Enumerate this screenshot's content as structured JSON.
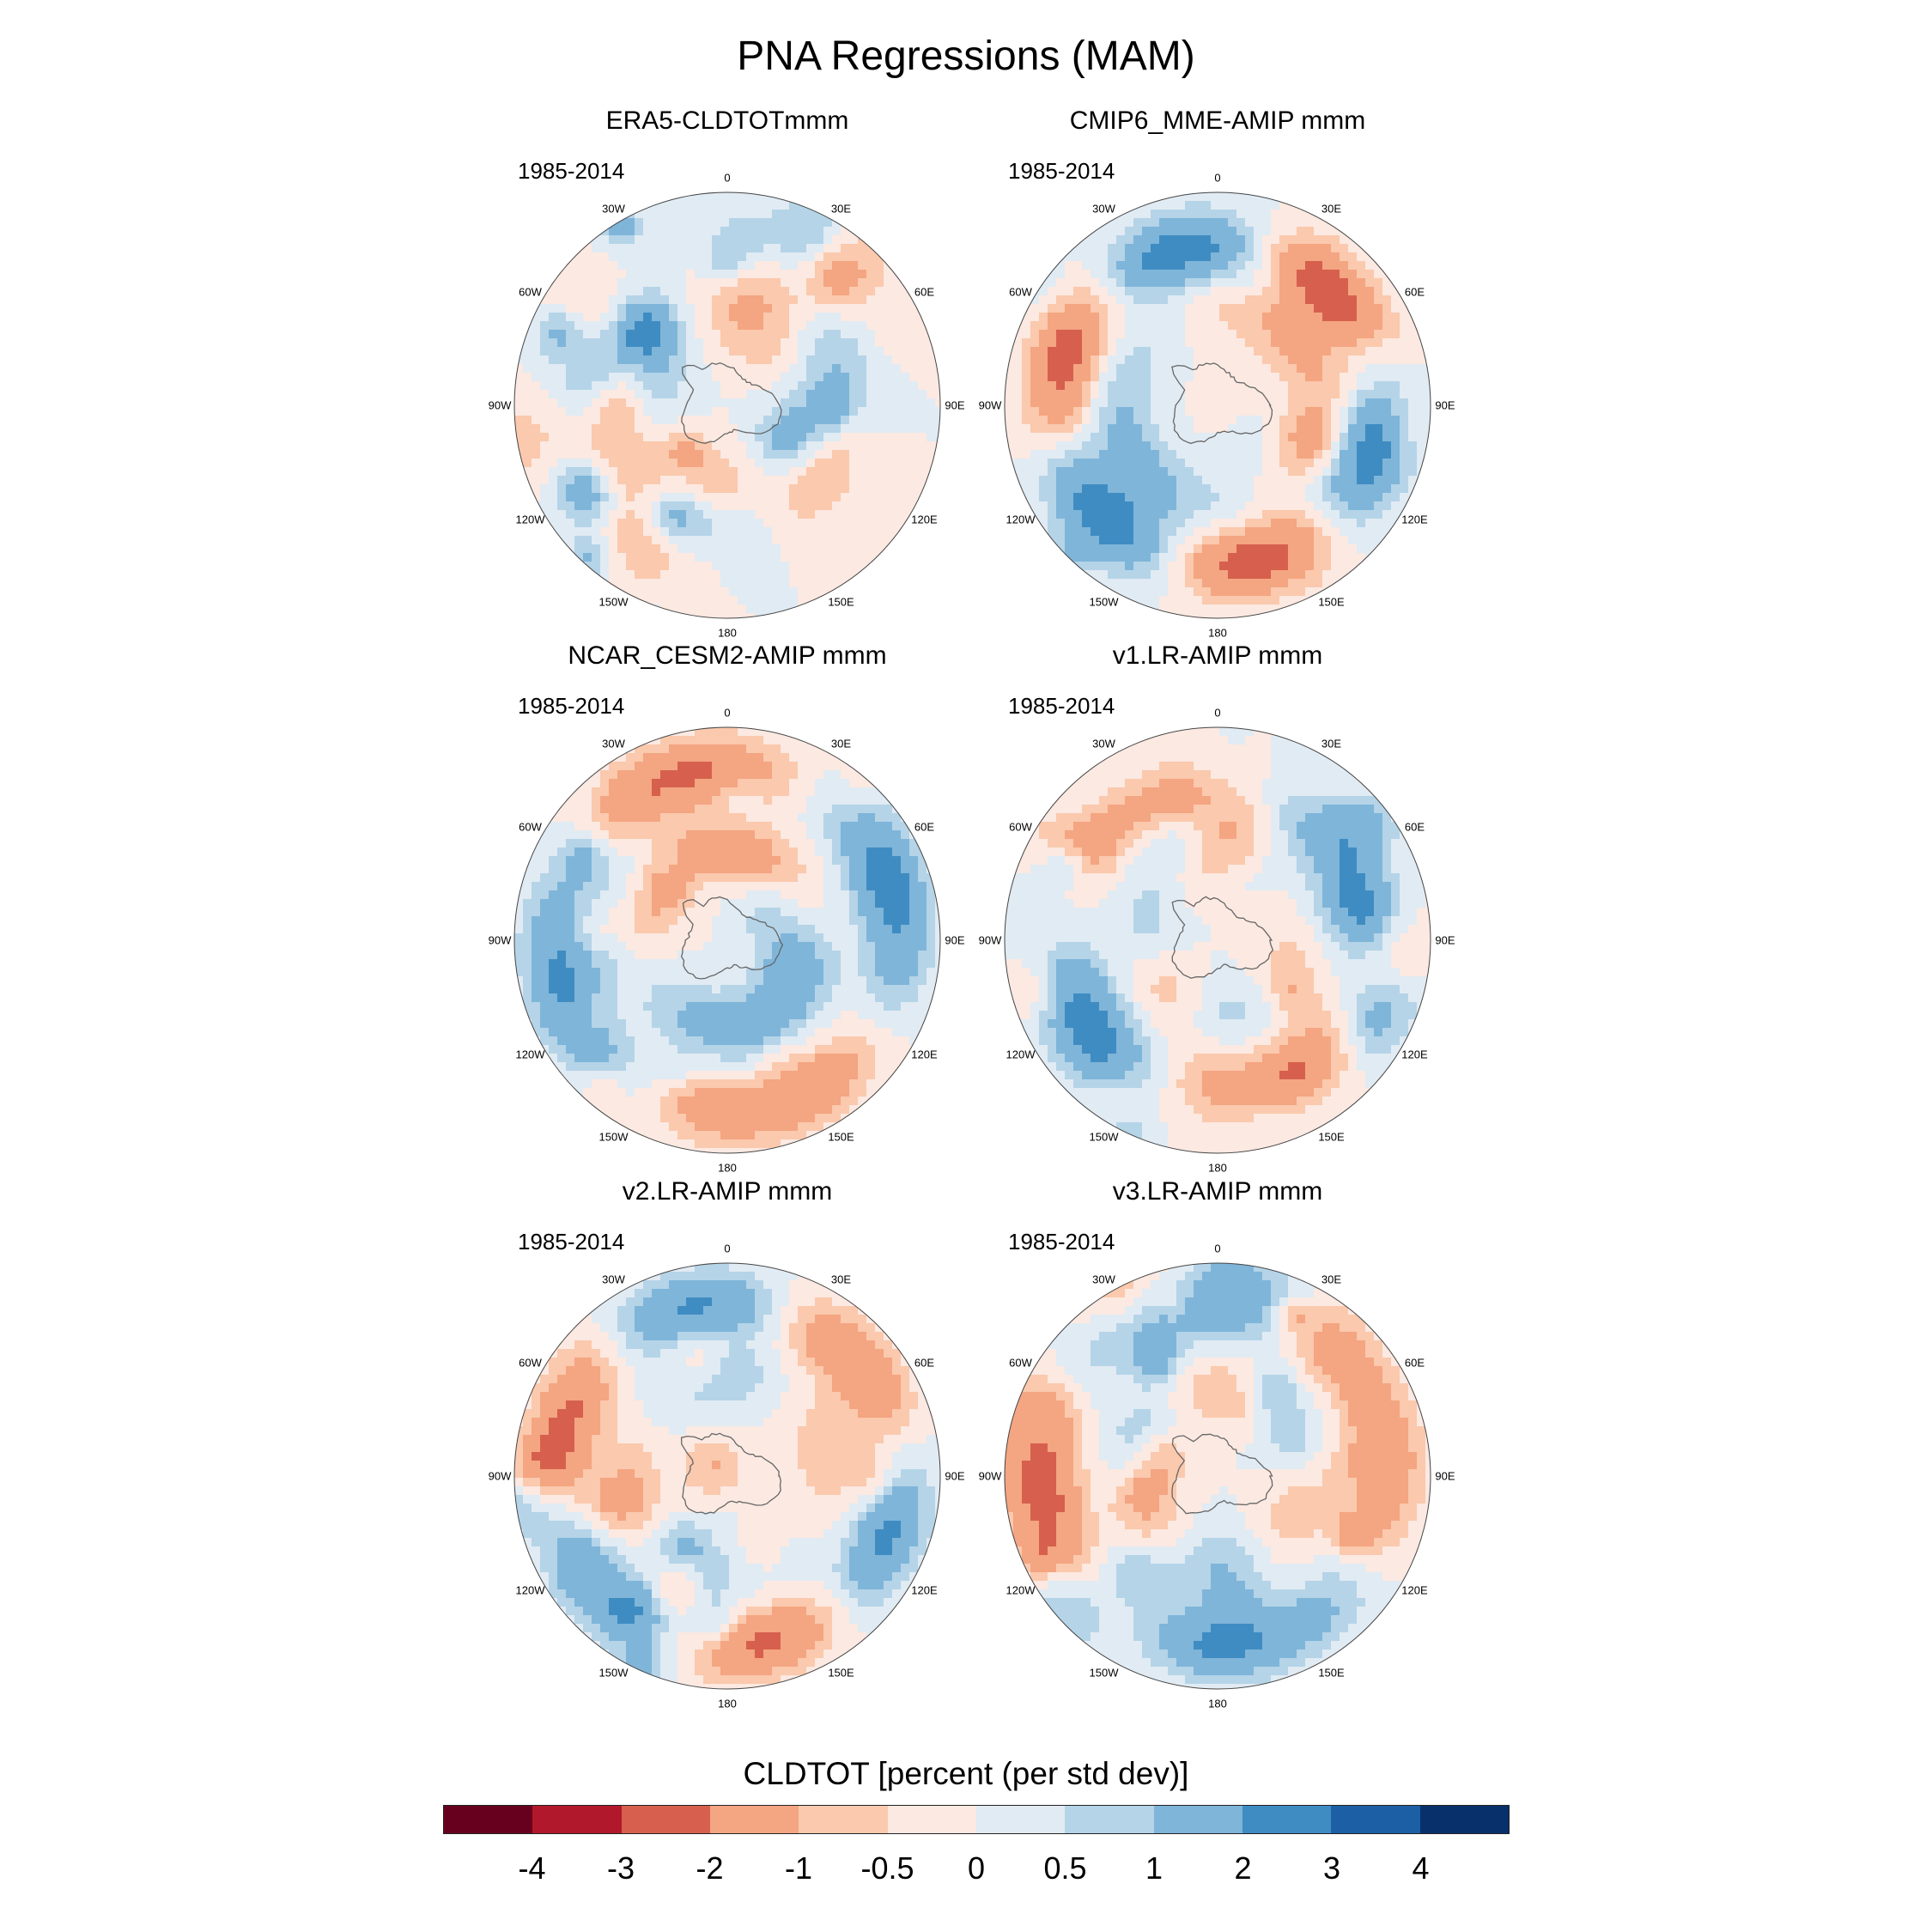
{
  "title": "PNA Regressions (MAM)",
  "panels": [
    {
      "title": "ERA5-CLDTOTmmm",
      "period": "1985-2014"
    },
    {
      "title": "CMIP6_MME-AMIP  mmm",
      "period": "1985-2014"
    },
    {
      "title": "NCAR_CESM2-AMIP  mmm",
      "period": "1985-2014"
    },
    {
      "title": "v1.LR-AMIP  mmm",
      "period": "1985-2014"
    },
    {
      "title": "v2.LR-AMIP  mmm",
      "period": "1985-2014"
    },
    {
      "title": "v3.LR-AMIP  mmm",
      "period": "1985-2014"
    }
  ],
  "longitude_labels": [
    "0",
    "30E",
    "60E",
    "90E",
    "120E",
    "150E",
    "180",
    "150W",
    "120W",
    "90W",
    "60W",
    "30W"
  ],
  "colorbar": {
    "title": "CLDTOT [percent (per std dev)]",
    "labels": [
      "-4",
      "-3",
      "-2",
      "-1",
      "-0.5",
      "0",
      "0.5",
      "1",
      "2",
      "3",
      "4"
    ],
    "colors": [
      "#67001f",
      "#b2182b",
      "#d6604d",
      "#f4a582",
      "#fbc9ad",
      "#fbe9e2",
      "#e1ebf3",
      "#b5d4e8",
      "#7fb5d9",
      "#3f8cc2",
      "#1d5fa5",
      "#08306b"
    ]
  }
}
